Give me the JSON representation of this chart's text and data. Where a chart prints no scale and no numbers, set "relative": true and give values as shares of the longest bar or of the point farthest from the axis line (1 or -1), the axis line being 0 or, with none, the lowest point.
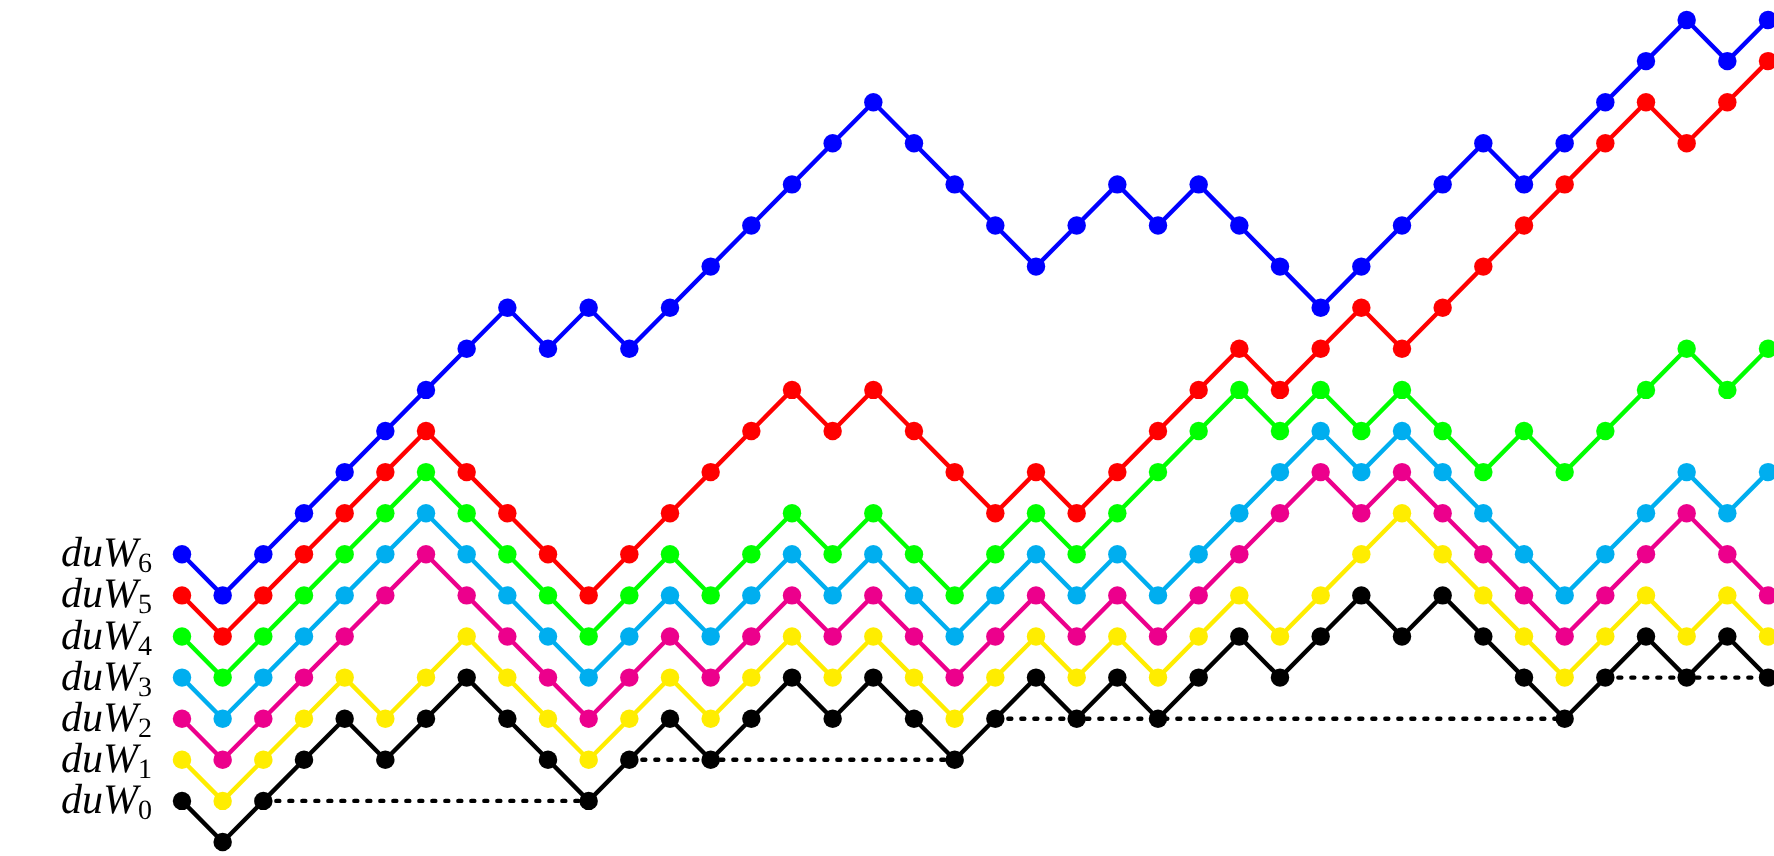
{
  "chart_data": {
    "type": "line",
    "relative": true,
    "marker": "circle",
    "line_style": "solid",
    "categories": [
      null,
      null,
      null,
      null,
      null,
      null,
      null,
      null,
      null,
      null,
      null,
      null,
      null,
      null,
      null,
      null,
      null,
      null,
      null,
      null,
      null,
      null,
      null,
      null,
      null,
      null,
      null,
      null,
      null,
      null,
      null,
      null,
      null,
      null,
      null,
      null,
      null,
      null,
      null,
      null
    ],
    "series": [
      {
        "name": "duW$_{0}$",
        "color": "#000000",
        "values": [
          0.05,
          0,
          0.05,
          0.1,
          0.15,
          0.1,
          0.15,
          0.2,
          0.15,
          0.1,
          0.05,
          0.1,
          0.15,
          0.1,
          0.15,
          0.2,
          0.15,
          0.2,
          0.15,
          0.1,
          0.15,
          0.2,
          0.15,
          0.2,
          0.15,
          0.2,
          0.25,
          0.2,
          0.25,
          0.3,
          0.25,
          0.3,
          0.25,
          0.2,
          0.15,
          0.2,
          0.25,
          0.2,
          0.25,
          0.2
        ]
      },
      {
        "name": "duW$_{1}$",
        "color": "#ffed00",
        "values": [
          0.1,
          0.05,
          0.1,
          0.15,
          0.2,
          0.15,
          0.2,
          0.25,
          0.2,
          0.15,
          0.1,
          0.15,
          0.2,
          0.15,
          0.2,
          0.25,
          0.2,
          0.25,
          0.2,
          0.15,
          0.2,
          0.25,
          0.2,
          0.25,
          0.2,
          0.25,
          0.3,
          0.25,
          0.3,
          0.35,
          0.4,
          0.35,
          0.3,
          0.25,
          0.2,
          0.25,
          0.3,
          0.25,
          0.3,
          0.25
        ]
      },
      {
        "name": "duW$_{2}$",
        "color": "#ec008c",
        "values": [
          0.15,
          0.1,
          0.15,
          0.2,
          0.25,
          0.3,
          0.35,
          0.3,
          0.25,
          0.2,
          0.15,
          0.2,
          0.25,
          0.2,
          0.25,
          0.3,
          0.25,
          0.3,
          0.25,
          0.2,
          0.25,
          0.3,
          0.25,
          0.3,
          0.25,
          0.3,
          0.35,
          0.4,
          0.45,
          0.4,
          0.45,
          0.4,
          0.35,
          0.3,
          0.25,
          0.3,
          0.35,
          0.4,
          0.35,
          0.3
        ]
      },
      {
        "name": "duW$_{3}$",
        "color": "#00aeef",
        "values": [
          0.2,
          0.15,
          0.2,
          0.25,
          0.3,
          0.35,
          0.4,
          0.35,
          0.3,
          0.25,
          0.2,
          0.25,
          0.3,
          0.25,
          0.3,
          0.35,
          0.3,
          0.35,
          0.3,
          0.25,
          0.3,
          0.35,
          0.3,
          0.35,
          0.3,
          0.35,
          0.4,
          0.45,
          0.5,
          0.45,
          0.5,
          0.45,
          0.4,
          0.35,
          0.3,
          0.35,
          0.4,
          0.45,
          0.4,
          0.45
        ]
      },
      {
        "name": "duW$_{4}$",
        "color": "#00ff00",
        "values": [
          0.25,
          0.2,
          0.25,
          0.3,
          0.35,
          0.4,
          0.45,
          0.4,
          0.35,
          0.3,
          0.25,
          0.3,
          0.35,
          0.3,
          0.35,
          0.4,
          0.35,
          0.4,
          0.35,
          0.3,
          0.35,
          0.4,
          0.35,
          0.4,
          0.45,
          0.5,
          0.55,
          0.5,
          0.55,
          0.5,
          0.55,
          0.5,
          0.45,
          0.5,
          0.45,
          0.5,
          0.55,
          0.6,
          0.55,
          0.6
        ]
      },
      {
        "name": "duW$_{5}$",
        "color": "#ff0000",
        "values": [
          0.3,
          0.25,
          0.3,
          0.35,
          0.4,
          0.45,
          0.5,
          0.45,
          0.4,
          0.35,
          0.3,
          0.35,
          0.4,
          0.45,
          0.5,
          0.55,
          0.5,
          0.55,
          0.5,
          0.45,
          0.4,
          0.45,
          0.4,
          0.45,
          0.5,
          0.55,
          0.6,
          0.55,
          0.6,
          0.65,
          0.6,
          0.65,
          0.7,
          0.75,
          0.8,
          0.85,
          0.9,
          0.85,
          0.9,
          0.95
        ]
      },
      {
        "name": "duW$_{6}$",
        "color": "#0000ff",
        "values": [
          0.35,
          0.3,
          0.35,
          0.4,
          0.45,
          0.5,
          0.55,
          0.6,
          0.65,
          0.6,
          0.65,
          0.6,
          0.65,
          0.7,
          0.75,
          0.8,
          0.85,
          0.9,
          0.85,
          0.8,
          0.75,
          0.7,
          0.75,
          0.8,
          0.75,
          0.8,
          0.75,
          0.7,
          0.65,
          0.7,
          0.75,
          0.8,
          0.85,
          0.8,
          0.85,
          0.9,
          0.95,
          1,
          0.95,
          1
        ]
      },
      {
        "color": "#000000",
        "marker": "none",
        "line_style": "dotted",
        "values": [
          null,
          null,
          0.05,
          0.05,
          0.05,
          0.05,
          0.05,
          0.05,
          0.05,
          0.05,
          0.05,
          null,
          null,
          null,
          null,
          null,
          null,
          null,
          null,
          null,
          null,
          null,
          null,
          null,
          null,
          null,
          null,
          null,
          null,
          null,
          null,
          null,
          null,
          null,
          null,
          null,
          null,
          null,
          null,
          null
        ]
      },
      {
        "color": "#000000",
        "marker": "none",
        "line_style": "dotted",
        "values": [
          null,
          null,
          null,
          null,
          null,
          null,
          null,
          null,
          null,
          null,
          null,
          0.1,
          0.1,
          0.1,
          0.1,
          0.1,
          0.1,
          0.1,
          0.1,
          0.1,
          null,
          null,
          null,
          null,
          null,
          null,
          null,
          null,
          null,
          null,
          null,
          null,
          null,
          null,
          null,
          null,
          null,
          null,
          null,
          null
        ]
      },
      {
        "color": "#000000",
        "marker": "none",
        "line_style": "dotted",
        "values": [
          null,
          null,
          null,
          null,
          null,
          null,
          null,
          null,
          null,
          null,
          null,
          null,
          null,
          null,
          null,
          null,
          null,
          null,
          null,
          null,
          0.15,
          0.15,
          0.15,
          0.15,
          0.15,
          0.15,
          0.15,
          0.15,
          0.15,
          0.15,
          0.15,
          0.15,
          0.15,
          0.15,
          0.15,
          null,
          null,
          null,
          null,
          null
        ]
      },
      {
        "color": "#000000",
        "marker": "none",
        "line_style": "dotted",
        "values": [
          null,
          null,
          null,
          null,
          null,
          null,
          null,
          null,
          null,
          null,
          null,
          null,
          null,
          null,
          null,
          null,
          null,
          null,
          null,
          null,
          null,
          null,
          null,
          null,
          null,
          null,
          null,
          null,
          null,
          null,
          null,
          null,
          null,
          null,
          null,
          0.2,
          0.2,
          0.2,
          0.2,
          0.2
        ]
      }
    ]
  }
}
